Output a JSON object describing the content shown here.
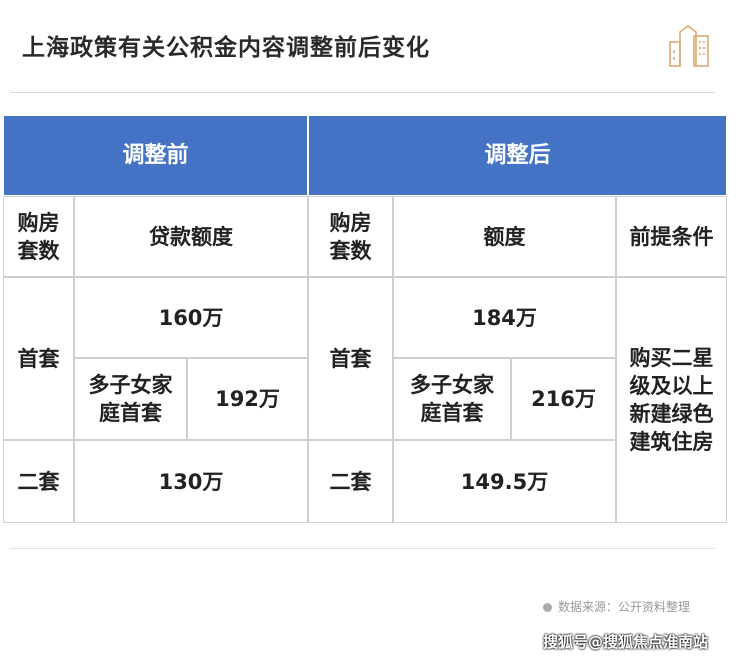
{
  "title": "上海政策有关公积金内容调整前后变化",
  "logo_icon": "building-icon",
  "header": {
    "before": "调整前",
    "after": "调整后"
  },
  "subheader": {
    "count1": "购房套数",
    "amount1": "贷款额度",
    "count2": "购房套数",
    "amount2": "额度",
    "condition": "前提条件"
  },
  "rows": {
    "first_label": "首套",
    "first_before": "160万",
    "multi_label_before": "多子女家庭首套",
    "multi_before": "192万",
    "first_label2": "首套",
    "first_after": "184万",
    "multi_label_after": "多子女家庭首套",
    "multi_after": "216万",
    "second_label": "二套",
    "second_before": "130万",
    "second_label2": "二套",
    "second_after": "149.5万",
    "condition": "购买二星级及以上新建绿色建筑住房"
  },
  "source": "数据来源：公开资料整理",
  "watermark": "搜狐号@搜狐焦点淮南站",
  "colors": {
    "header": "#4472c4",
    "logo": "#d9a66b"
  }
}
